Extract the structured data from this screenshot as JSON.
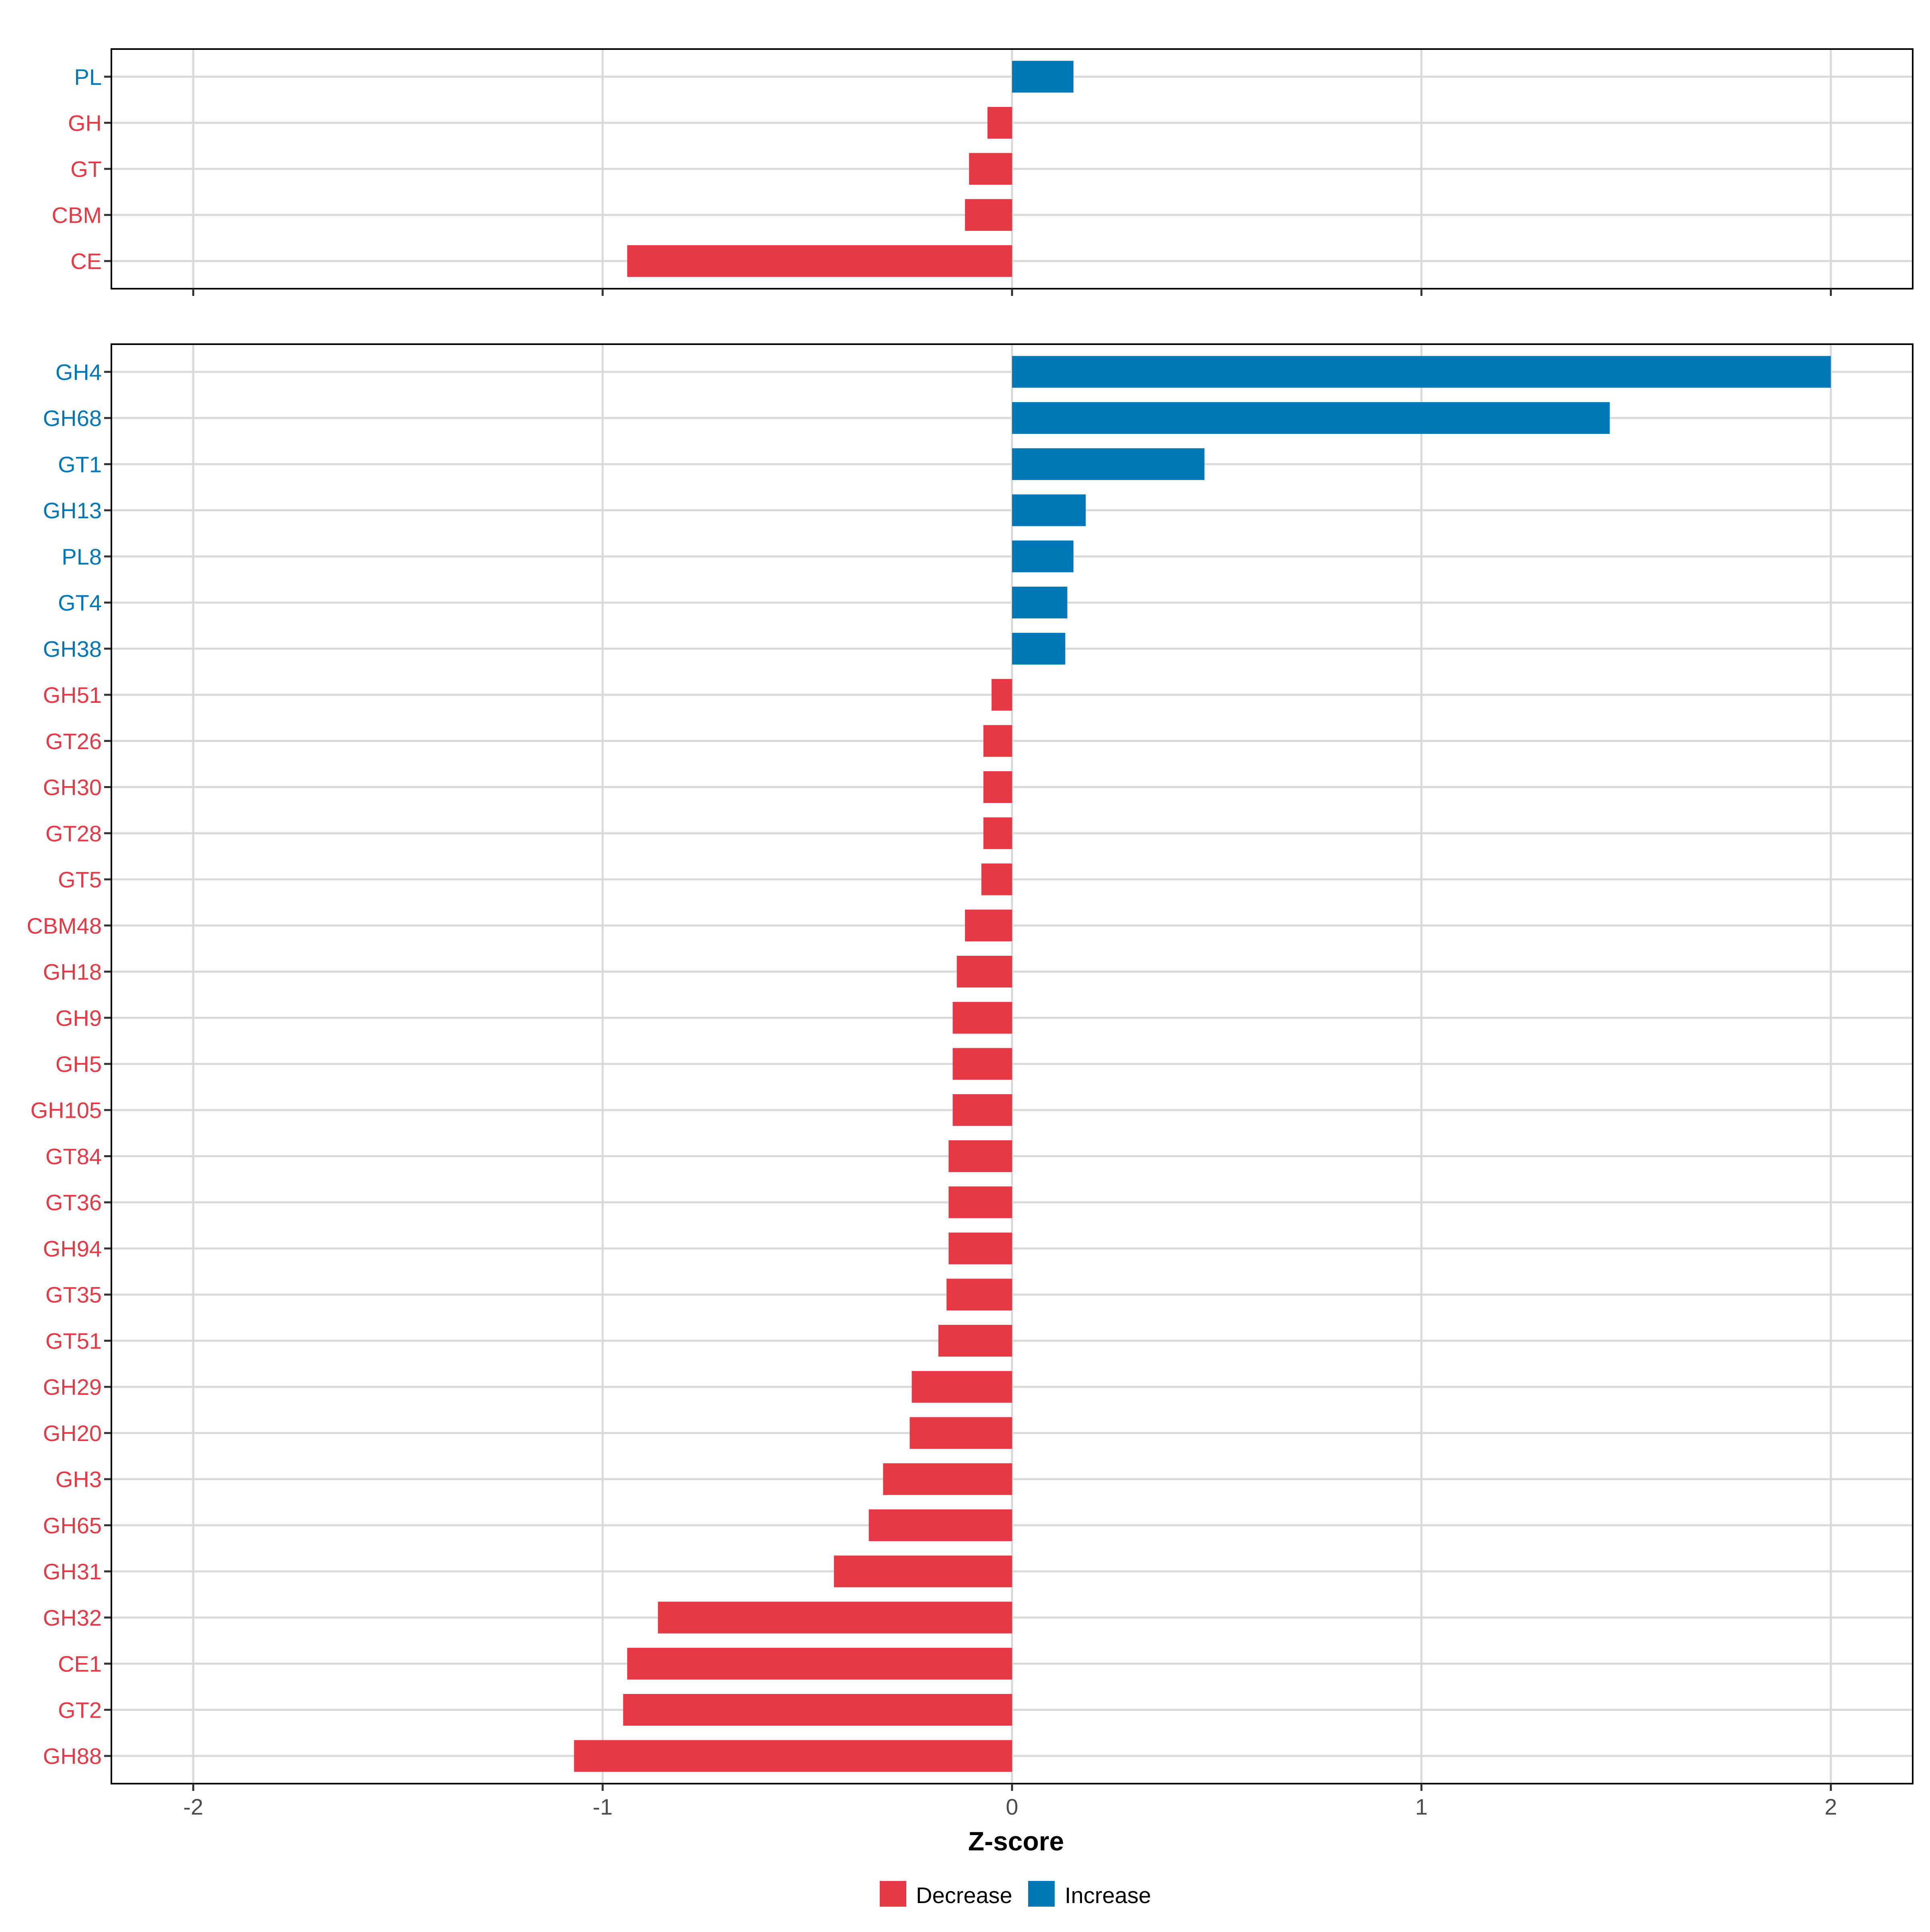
{
  "colors": {
    "decrease": "#E63946",
    "increase": "#0077B6",
    "grid": "#D9D9D9",
    "panel_border": "#000000"
  },
  "chart_data": [
    {
      "type": "bar",
      "orientation": "horizontal",
      "panel": "top",
      "categories": [
        "PL",
        "GH",
        "GT",
        "CBM",
        "CE"
      ],
      "values": [
        0.15,
        -0.06,
        -0.105,
        -0.115,
        -0.94
      ],
      "directions": [
        "Increase",
        "Decrease",
        "Decrease",
        "Decrease",
        "Decrease"
      ],
      "xlim": [
        -2.2,
        2.2
      ]
    },
    {
      "type": "bar",
      "orientation": "horizontal",
      "panel": "bottom",
      "categories": [
        "GH4",
        "GH68",
        "GT1",
        "GH13",
        "PL8",
        "GT4",
        "GH38",
        "GH51",
        "GT26",
        "GH30",
        "GT28",
        "GT5",
        "CBM48",
        "GH18",
        "GH9",
        "GH5",
        "GH105",
        "GT84",
        "GT36",
        "GH94",
        "GT35",
        "GT51",
        "GH29",
        "GH20",
        "GH3",
        "GH65",
        "GH31",
        "GH32",
        "CE1",
        "GT2",
        "GH88"
      ],
      "values": [
        2.0,
        1.46,
        0.47,
        0.18,
        0.15,
        0.135,
        0.13,
        -0.05,
        -0.07,
        -0.07,
        -0.07,
        -0.075,
        -0.115,
        -0.135,
        -0.145,
        -0.145,
        -0.145,
        -0.155,
        -0.155,
        -0.155,
        -0.16,
        -0.18,
        -0.245,
        -0.25,
        -0.315,
        -0.35,
        -0.435,
        -0.865,
        -0.94,
        -0.95,
        -1.07
      ],
      "directions": [
        "Increase",
        "Increase",
        "Increase",
        "Increase",
        "Increase",
        "Increase",
        "Increase",
        "Decrease",
        "Decrease",
        "Decrease",
        "Decrease",
        "Decrease",
        "Decrease",
        "Decrease",
        "Decrease",
        "Decrease",
        "Decrease",
        "Decrease",
        "Decrease",
        "Decrease",
        "Decrease",
        "Decrease",
        "Decrease",
        "Decrease",
        "Decrease",
        "Decrease",
        "Decrease",
        "Decrease",
        "Decrease",
        "Decrease",
        "Decrease"
      ],
      "xlim": [
        -2.2,
        2.2
      ],
      "xticks": [
        -2,
        -1,
        0,
        1,
        2
      ],
      "xtick_labels": [
        "-2",
        "-1",
        "0",
        "1",
        "2"
      ],
      "xlabel": "Z-score"
    }
  ],
  "legend": {
    "position": "bottom",
    "items": [
      {
        "label": "Decrease",
        "color": "#E63946"
      },
      {
        "label": "Increase",
        "color": "#0077B6"
      }
    ]
  }
}
